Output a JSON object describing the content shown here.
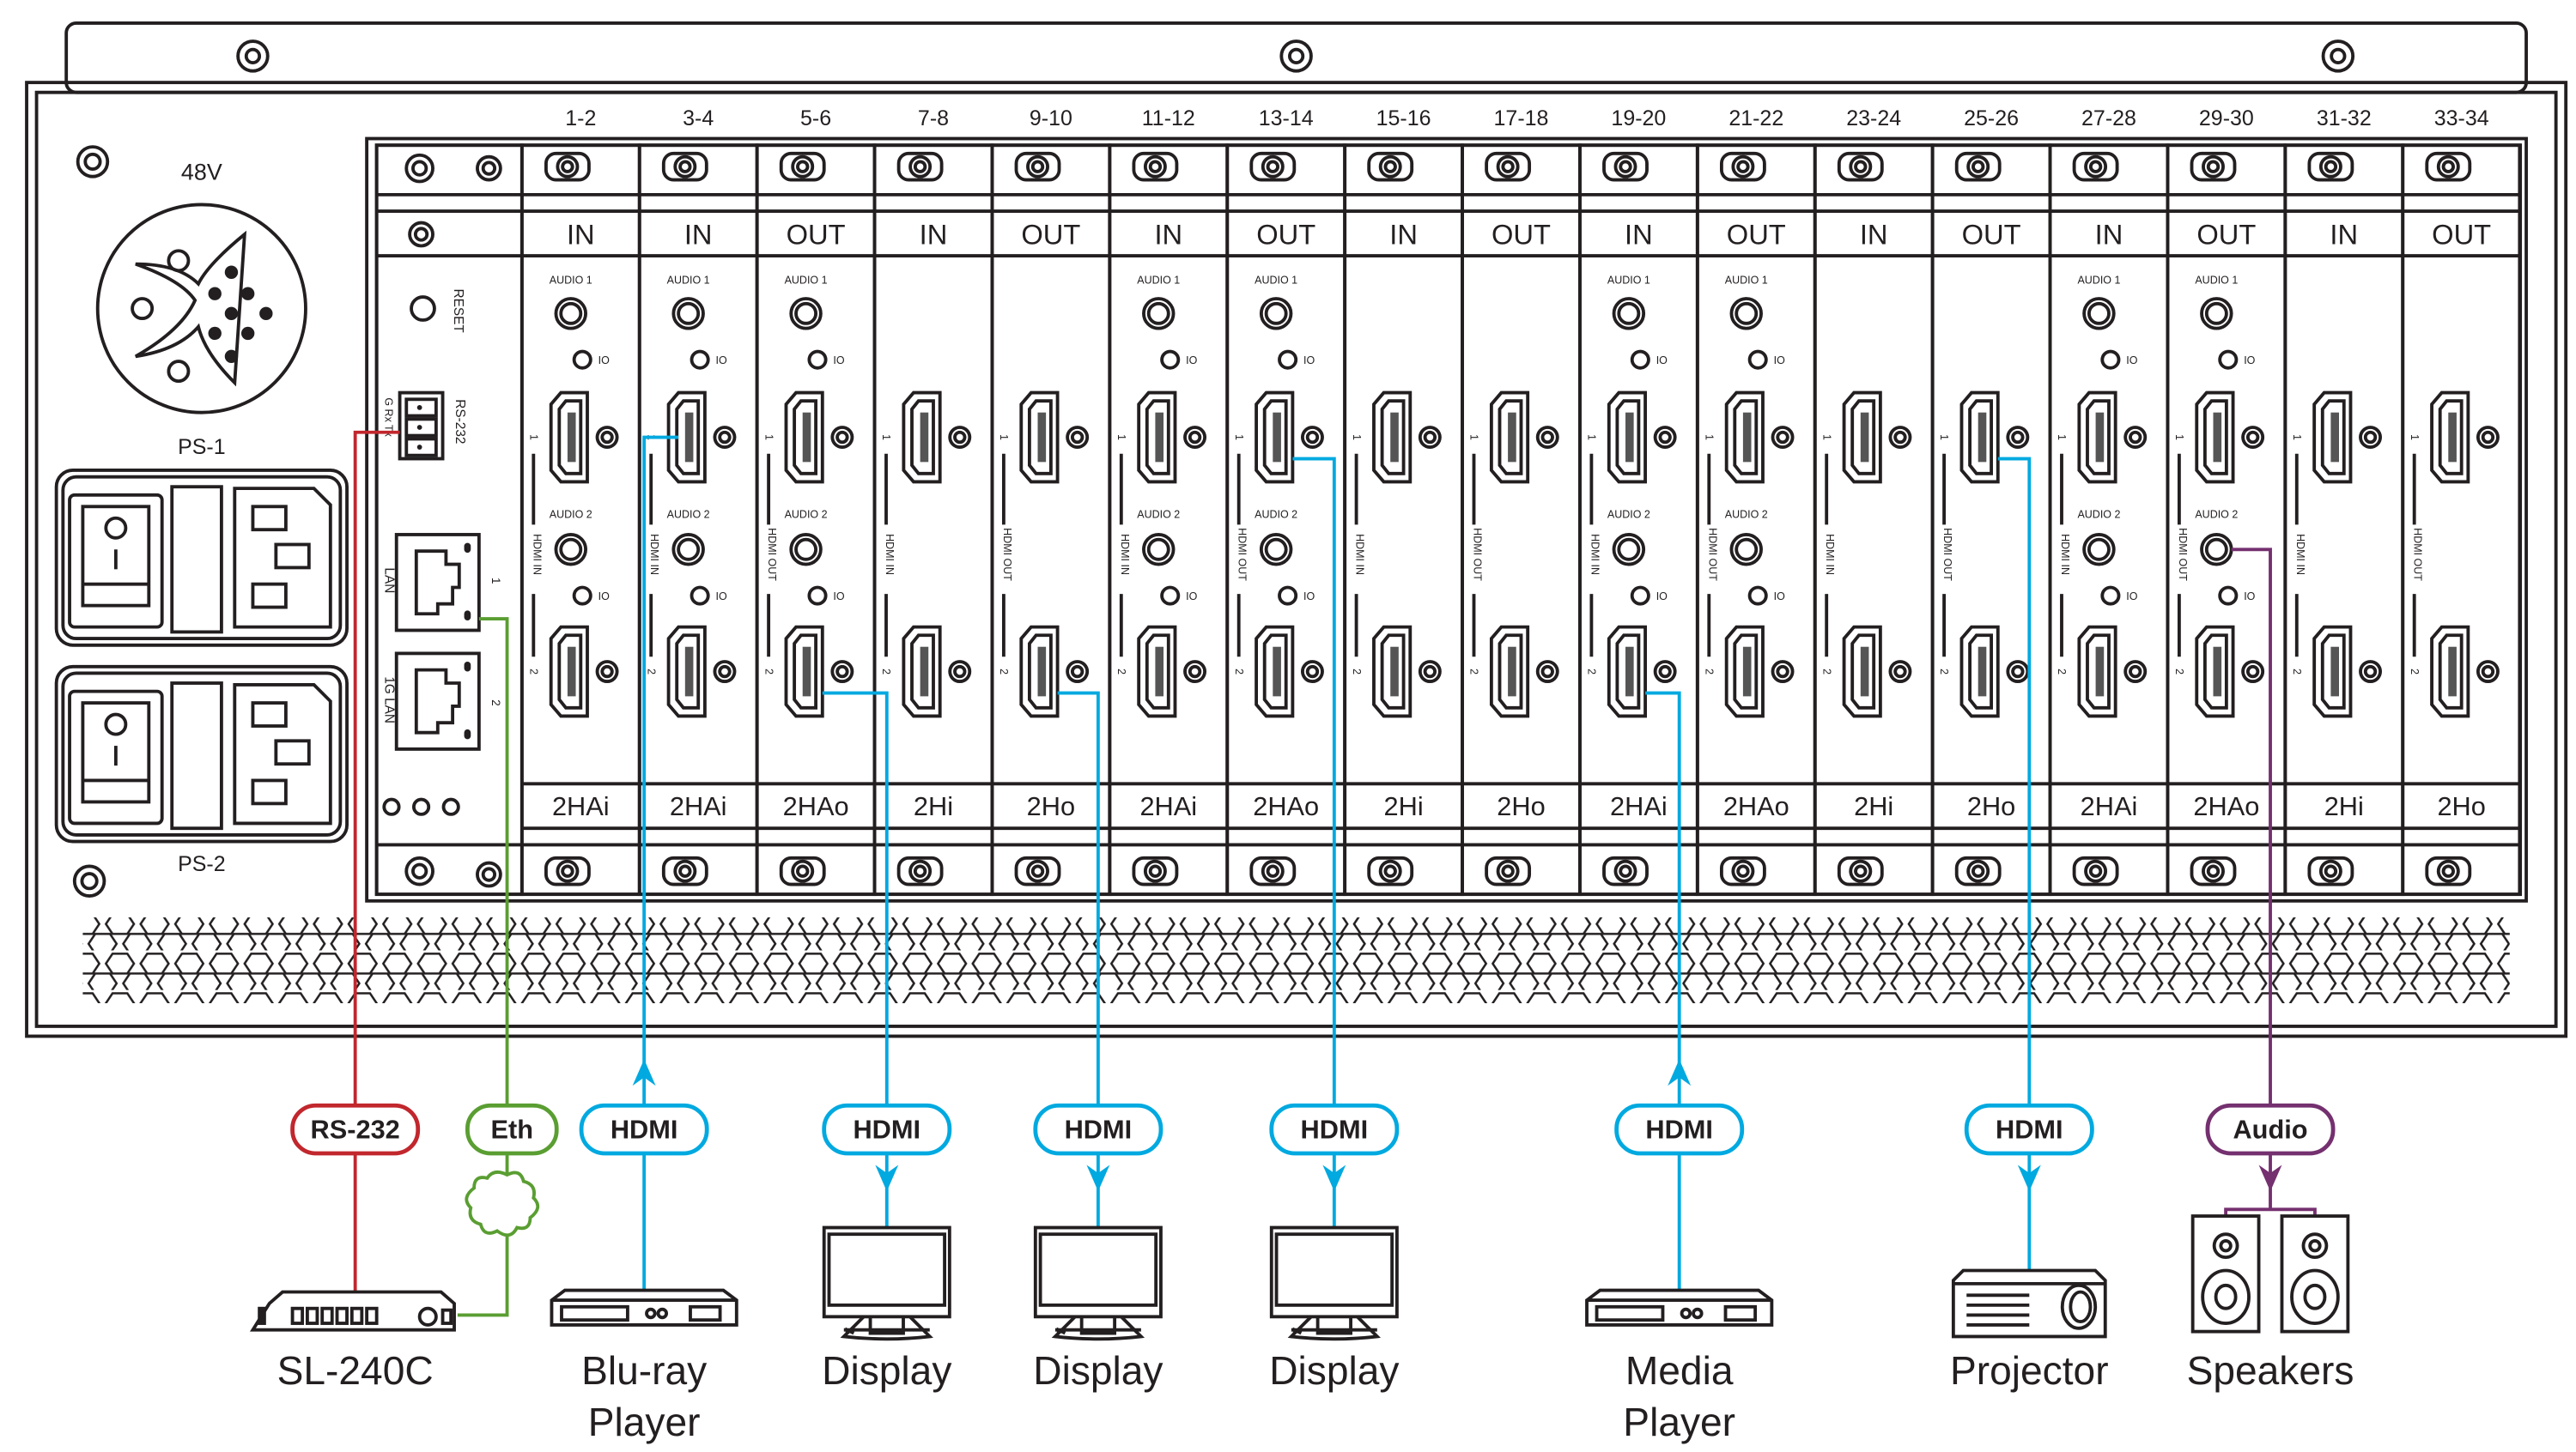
{
  "panel": {
    "power_label": "48V",
    "ps1_label": "PS-1",
    "ps2_label": "PS-2",
    "reset_label": "RESET",
    "rs232_label": "RS-232",
    "rs232_pins": "G Rx Tx",
    "lan_label": "LAN",
    "lan_port_1": "1",
    "lan1g_label": "1G LAN",
    "lan_port_2": "2"
  },
  "slot_text": {
    "audio1": "AUDIO 1",
    "audio2": "AUDIO 2",
    "io": "IO",
    "port1": "1",
    "port2": "2"
  },
  "slots": [
    {
      "range": "1-2",
      "dir": "IN",
      "model": "2HAi",
      "audio": true,
      "side": "HDMI IN"
    },
    {
      "range": "3-4",
      "dir": "IN",
      "model": "2HAi",
      "audio": true,
      "side": "HDMI IN"
    },
    {
      "range": "5-6",
      "dir": "OUT",
      "model": "2HAo",
      "audio": true,
      "side": "HDMI OUT"
    },
    {
      "range": "7-8",
      "dir": "IN",
      "model": "2Hi",
      "audio": false,
      "side": "HDMI IN"
    },
    {
      "range": "9-10",
      "dir": "OUT",
      "model": "2Ho",
      "audio": false,
      "side": "HDMI OUT"
    },
    {
      "range": "11-12",
      "dir": "IN",
      "model": "2HAi",
      "audio": true,
      "side": "HDMI IN"
    },
    {
      "range": "13-14",
      "dir": "OUT",
      "model": "2HAo",
      "audio": true,
      "side": "HDMI OUT"
    },
    {
      "range": "15-16",
      "dir": "IN",
      "model": "2Hi",
      "audio": false,
      "side": "HDMI IN"
    },
    {
      "range": "17-18",
      "dir": "OUT",
      "model": "2Ho",
      "audio": false,
      "side": "HDMI OUT"
    },
    {
      "range": "19-20",
      "dir": "IN",
      "model": "2HAi",
      "audio": true,
      "side": "HDMI IN"
    },
    {
      "range": "21-22",
      "dir": "OUT",
      "model": "2HAo",
      "audio": true,
      "side": "HDMI OUT"
    },
    {
      "range": "23-24",
      "dir": "IN",
      "model": "2Hi",
      "audio": false,
      "side": "HDMI IN"
    },
    {
      "range": "25-26",
      "dir": "OUT",
      "model": "2Ho",
      "audio": false,
      "side": "HDMI OUT"
    },
    {
      "range": "27-28",
      "dir": "IN",
      "model": "2HAi",
      "audio": true,
      "side": "HDMI IN"
    },
    {
      "range": "29-30",
      "dir": "OUT",
      "model": "2HAo",
      "audio": true,
      "side": "HDMI OUT"
    },
    {
      "range": "31-32",
      "dir": "IN",
      "model": "2Hi",
      "audio": false,
      "side": "HDMI IN"
    },
    {
      "range": "33-34",
      "dir": "OUT",
      "model": "2Ho",
      "audio": false,
      "side": "HDMI OUT"
    }
  ],
  "colors": {
    "rs232": "#c1272d",
    "ethernet": "#5a9e32",
    "hdmi": "#00a9e0",
    "audio": "#74306f",
    "outline": "#231f20"
  },
  "connections": [
    {
      "label": "RS-232",
      "color_key": "rs232",
      "device": "SL-240C",
      "device_line2": "",
      "icon": "control-panel-icon",
      "direction": "none"
    },
    {
      "label": "Eth",
      "color_key": "ethernet",
      "device": "",
      "device_line2": "",
      "icon": "network-cloud-icon",
      "direction": "none"
    },
    {
      "label": "HDMI",
      "color_key": "hdmi",
      "device": "Blu-ray",
      "device_line2": "Player",
      "icon": "bluray-player-icon",
      "direction": "in",
      "slot": "3-4",
      "port": 1
    },
    {
      "label": "HDMI",
      "color_key": "hdmi",
      "device": "Display",
      "device_line2": "",
      "icon": "display-icon",
      "direction": "out",
      "slot": "5-6",
      "port": 2
    },
    {
      "label": "HDMI",
      "color_key": "hdmi",
      "device": "Display",
      "device_line2": "",
      "icon": "display-icon",
      "direction": "out",
      "slot": "9-10",
      "port": 2
    },
    {
      "label": "HDMI",
      "color_key": "hdmi",
      "device": "Display",
      "device_line2": "",
      "icon": "display-icon",
      "direction": "out",
      "slot": "13-14",
      "port": 1
    },
    {
      "label": "HDMI",
      "color_key": "hdmi",
      "device": "Media",
      "device_line2": "Player",
      "icon": "media-player-icon",
      "direction": "in",
      "slot": "19-20",
      "port": 2
    },
    {
      "label": "HDMI",
      "color_key": "hdmi",
      "device": "Projector",
      "device_line2": "",
      "icon": "projector-icon",
      "direction": "out",
      "slot": "25-26",
      "port": 1
    },
    {
      "label": "Audio",
      "color_key": "audio",
      "device": "Speakers",
      "device_line2": "",
      "icon": "speakers-icon",
      "direction": "out",
      "slot": "29-30",
      "port": "audio2"
    }
  ]
}
